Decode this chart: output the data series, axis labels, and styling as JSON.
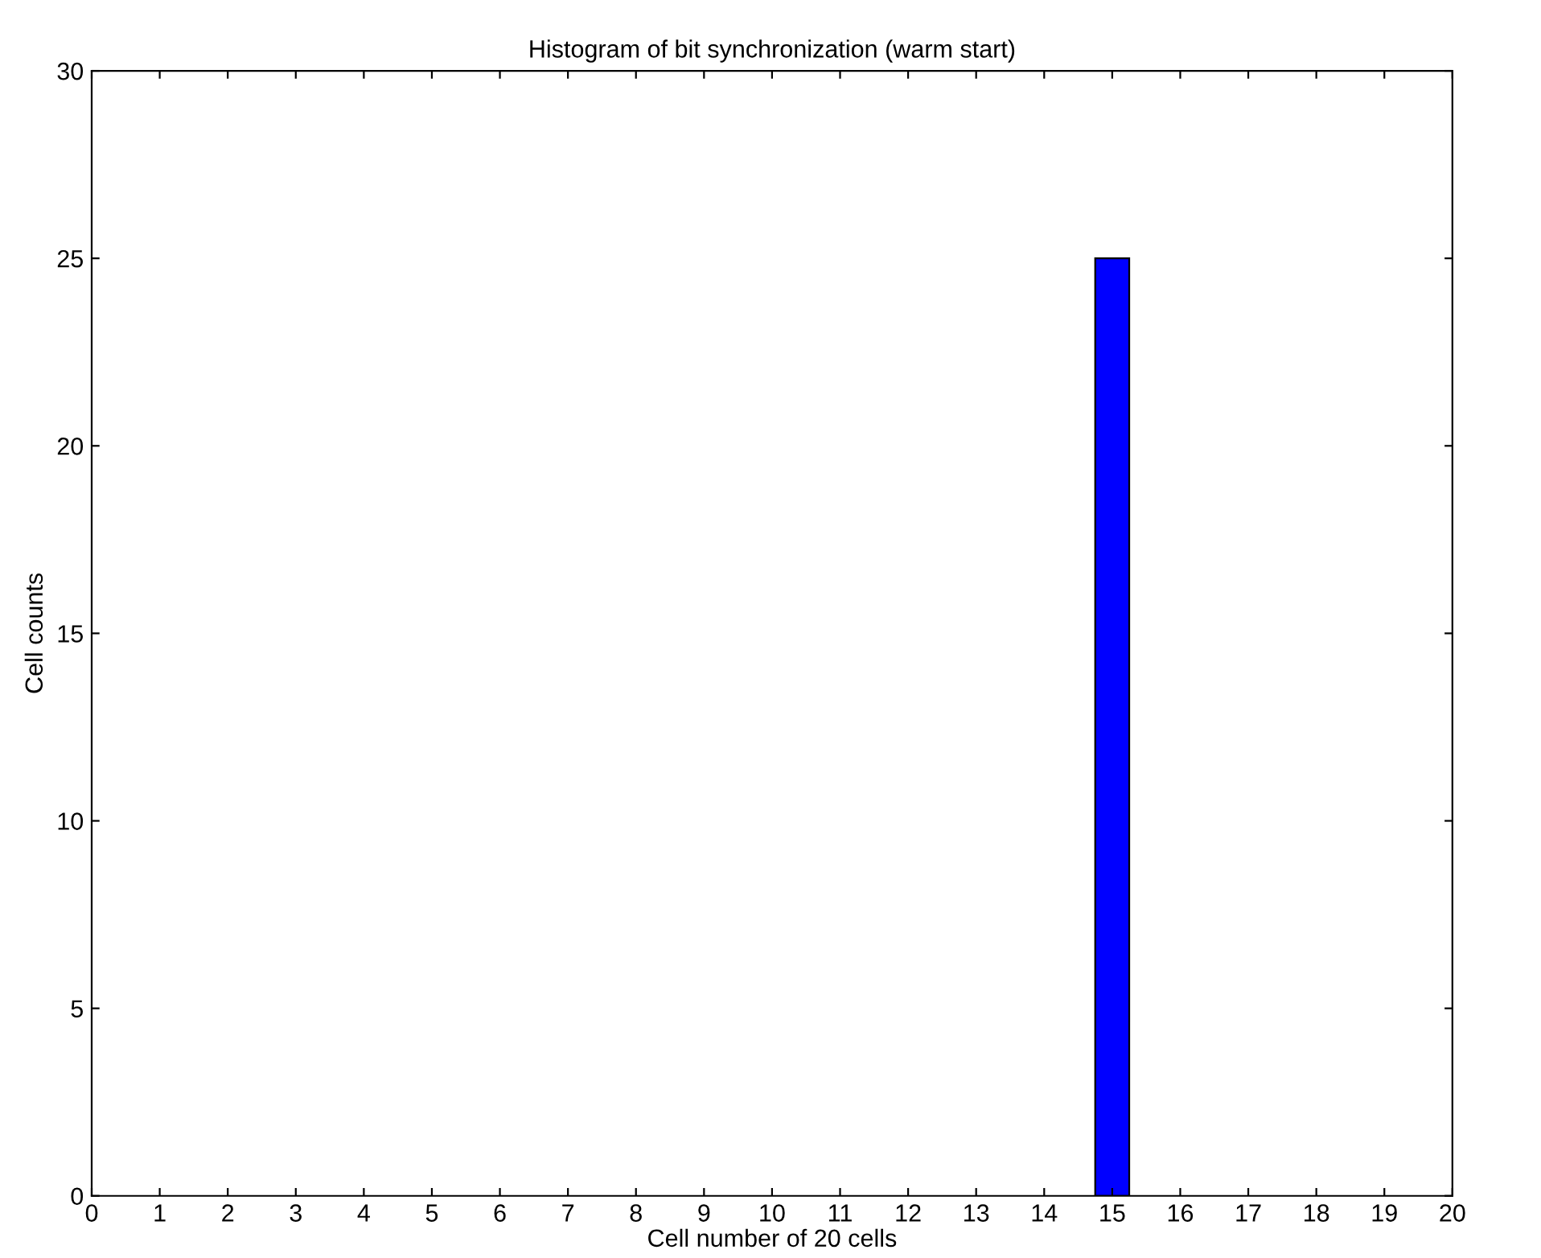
{
  "chart_data": {
    "type": "bar",
    "title": "Histogram of bit synchronization (warm start)",
    "xlabel": "Cell number of 20 cells",
    "ylabel": "Cell counts",
    "x": [
      15
    ],
    "values": [
      25
    ],
    "color": "#0000ff",
    "xlim": [
      0,
      20
    ],
    "xticks": [
      0,
      1,
      2,
      3,
      4,
      5,
      6,
      7,
      8,
      9,
      10,
      11,
      12,
      13,
      14,
      15,
      16,
      17,
      18,
      19,
      20
    ],
    "ylim": [
      0,
      30
    ],
    "yticks": [
      0,
      5,
      10,
      15,
      20,
      25,
      30
    ],
    "grid": false,
    "legend": false
  }
}
